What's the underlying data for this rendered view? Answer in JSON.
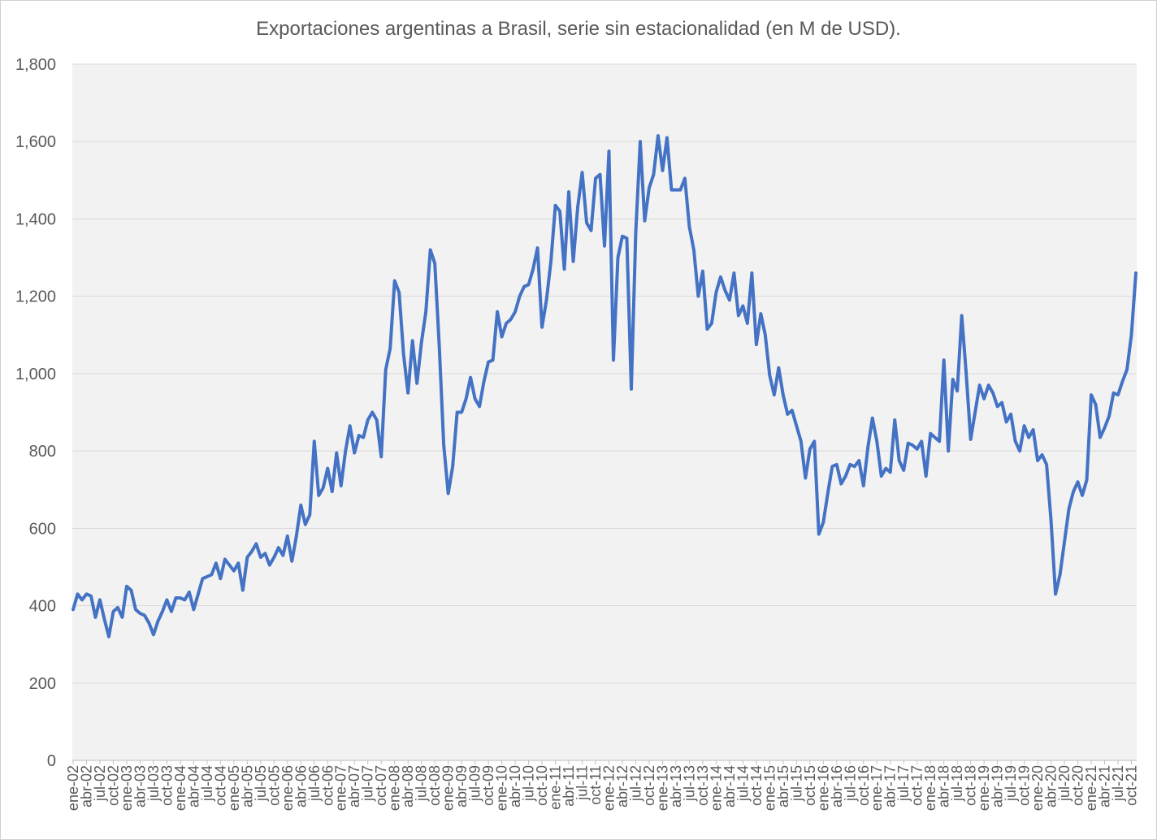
{
  "chart_data": {
    "type": "line",
    "title": "Exportaciones argentinas a Brasil, serie sin estacionalidad (en M de USD).",
    "xlabel": "",
    "ylabel": "",
    "ylim": [
      0,
      1800
    ],
    "yticks": [
      0,
      200,
      400,
      600,
      800,
      1000,
      1200,
      1400,
      1600,
      1800
    ],
    "ytick_labels": [
      "0",
      "200",
      "400",
      "600",
      "800",
      "1,000",
      "1,200",
      "1,400",
      "1,600",
      "1,800"
    ],
    "grid": true,
    "legend": "none",
    "line_color": "#4472C4",
    "x_start": "ene-02",
    "x_tick_every_months": 3,
    "x_tick_labels": [
      "ene-02",
      "abr-02",
      "jul-02",
      "oct-02",
      "ene-03",
      "abr-03",
      "jul-03",
      "oct-03",
      "ene-04",
      "abr-04",
      "jul-04",
      "oct-04",
      "ene-05",
      "abr-05",
      "jul-05",
      "oct-05",
      "ene-06",
      "abr-06",
      "jul-06",
      "oct-06",
      "ene-07",
      "abr-07",
      "jul-07",
      "oct-07",
      "ene-08",
      "abr-08",
      "jul-08",
      "oct-08",
      "ene-09",
      "abr-09",
      "jul-09",
      "oct-09",
      "ene-10",
      "abr-10",
      "jul-10",
      "oct-10",
      "ene-11",
      "abr-11",
      "jul-11",
      "oct-11",
      "ene-12",
      "abr-12",
      "jul-12",
      "oct-12",
      "ene-13",
      "abr-13",
      "jul-13",
      "oct-13",
      "ene-14",
      "abr-14",
      "jul-14",
      "oct-14",
      "ene-15",
      "abr-15",
      "jul-15",
      "oct-15",
      "ene-16",
      "abr-16",
      "jul-16",
      "oct-16",
      "ene-17",
      "abr-17",
      "jul-17",
      "oct-17",
      "ene-18",
      "abr-18",
      "jul-18",
      "oct-18",
      "ene-19",
      "abr-19",
      "jul-19",
      "oct-19",
      "ene-20",
      "abr-20",
      "jul-20",
      "oct-20",
      "ene-21",
      "abr-21",
      "jul-21",
      "oct-21"
    ],
    "series": [
      {
        "values": [
          390,
          430,
          415,
          430,
          425,
          370,
          415,
          365,
          320,
          385,
          395,
          370,
          450,
          440,
          390,
          380,
          375,
          355,
          325,
          360,
          385,
          415,
          385,
          420,
          420,
          415,
          435,
          390,
          430,
          470,
          475,
          480,
          510,
          470,
          520,
          505,
          490,
          510,
          440,
          525,
          540,
          560,
          525,
          535,
          505,
          525,
          550,
          530,
          580,
          515,
          580,
          660,
          610,
          635,
          825,
          685,
          705,
          755,
          695,
          795,
          710,
          800,
          865,
          795,
          840,
          835,
          880,
          900,
          880,
          785,
          1010,
          1065,
          1240,
          1210,
          1050,
          950,
          1085,
          975,
          1080,
          1160,
          1320,
          1285,
          1070,
          815,
          690,
          760,
          900,
          900,
          935,
          990,
          935,
          915,
          980,
          1030,
          1035,
          1160,
          1095,
          1130,
          1140,
          1160,
          1200,
          1225,
          1230,
          1270,
          1325,
          1120,
          1190,
          1290,
          1435,
          1420,
          1270,
          1470,
          1290,
          1430,
          1520,
          1390,
          1370,
          1505,
          1515,
          1330,
          1575,
          1035,
          1300,
          1355,
          1350,
          960,
          1365,
          1600,
          1395,
          1480,
          1515,
          1615,
          1525,
          1610,
          1475,
          1475,
          1475,
          1505,
          1380,
          1320,
          1200,
          1265,
          1115,
          1130,
          1210,
          1250,
          1215,
          1190,
          1260,
          1150,
          1175,
          1130,
          1260,
          1075,
          1155,
          1100,
          995,
          945,
          1015,
          945,
          895,
          905,
          865,
          825,
          730,
          805,
          825,
          585,
          615,
          690,
          760,
          765,
          715,
          735,
          765,
          760,
          775,
          710,
          810,
          885,
          825,
          735,
          755,
          745,
          880,
          775,
          750,
          820,
          815,
          805,
          825,
          735,
          845,
          835,
          825,
          1035,
          800,
          985,
          955,
          1150,
          1000,
          830,
          900,
          970,
          935,
          970,
          950,
          915,
          925,
          875,
          895,
          825,
          800,
          865,
          835,
          855,
          775,
          790,
          765,
          620,
          430,
          480,
          565,
          650,
          695,
          720,
          685,
          725,
          945,
          920,
          835,
          860,
          890,
          950,
          945,
          980,
          1010,
          1100,
          1260
        ]
      }
    ]
  }
}
